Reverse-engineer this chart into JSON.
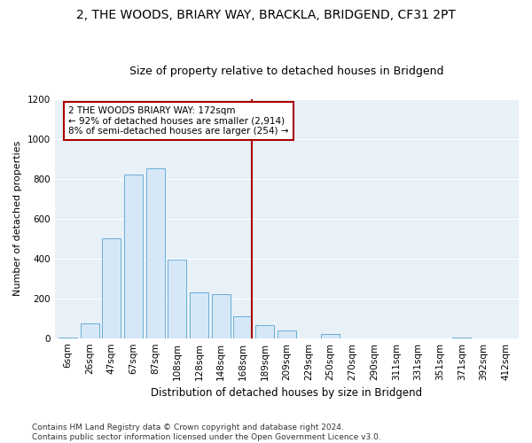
{
  "title": "2, THE WOODS, BRIARY WAY, BRACKLA, BRIDGEND, CF31 2PT",
  "subtitle": "Size of property relative to detached houses in Bridgend",
  "xlabel": "Distribution of detached houses by size in Bridgend",
  "ylabel": "Number of detached properties",
  "footnote": "Contains HM Land Registry data © Crown copyright and database right 2024.\nContains public sector information licensed under the Open Government Licence v3.0.",
  "bar_color": "#d6e8f7",
  "bar_edge_color": "#6aaed6",
  "bin_labels": [
    "6sqm",
    "26sqm",
    "47sqm",
    "67sqm",
    "87sqm",
    "108sqm",
    "128sqm",
    "148sqm",
    "168sqm",
    "189sqm",
    "209sqm",
    "229sqm",
    "250sqm",
    "270sqm",
    "290sqm",
    "311sqm",
    "331sqm",
    "351sqm",
    "371sqm",
    "392sqm",
    "412sqm"
  ],
  "bar_values": [
    5,
    75,
    500,
    820,
    850,
    395,
    230,
    220,
    110,
    65,
    40,
    0,
    20,
    0,
    0,
    0,
    0,
    0,
    5,
    0,
    0
  ],
  "property_label": "2 THE WOODS BRIARY WAY: 172sqm",
  "annotation_line1": "← 92% of detached houses are smaller (2,914)",
  "annotation_line2": "8% of semi-detached houses are larger (254) →",
  "vline_color": "#aa0000",
  "vline_x_index": 8.4,
  "annotation_box_edge": "#aa0000",
  "ylim": [
    0,
    1200
  ],
  "yticks": [
    0,
    200,
    400,
    600,
    800,
    1000,
    1200
  ],
  "background_color": "#e8f0f8",
  "grid_color": "#ffffff",
  "title_fontsize": 10,
  "subtitle_fontsize": 9,
  "axis_label_fontsize": 8,
  "tick_fontsize": 7.5,
  "footnote_fontsize": 6.5
}
